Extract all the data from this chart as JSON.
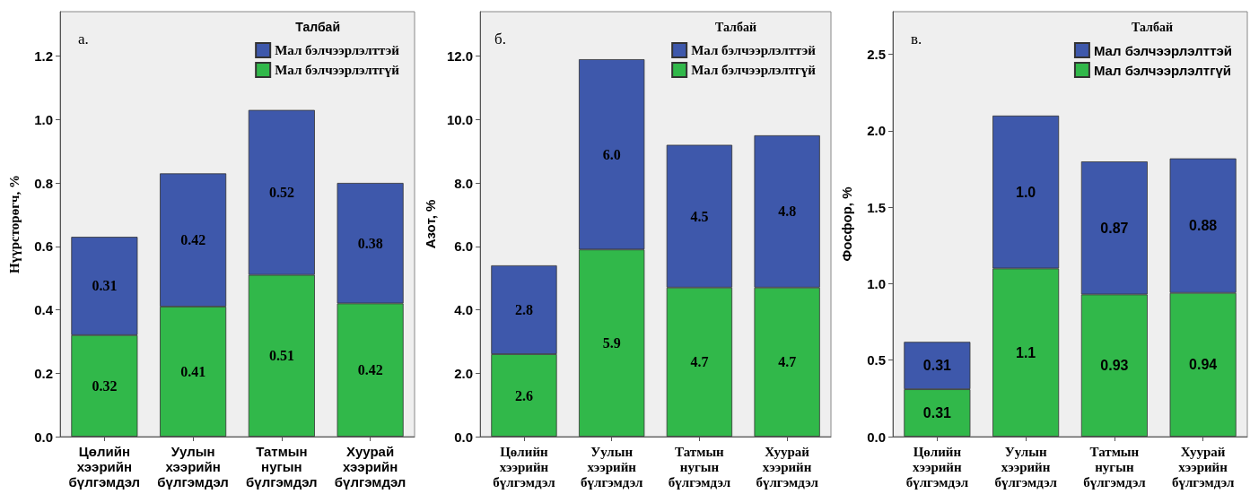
{
  "chart_data": [
    {
      "type": "bar",
      "title": "а.",
      "ylabel": "Нүүрсторөгч, %",
      "legend_title": "Талбай",
      "legend": "top right",
      "stacked": true,
      "grid": false,
      "categories": [
        "Цөлийн хээрийн бүлгэмдэл",
        "Уулын хээрийн бүлгэмдэл",
        "Татмын нугын бүлгэмдэл",
        "Хуурай хээрийн бүлгэмдэл"
      ],
      "ylim": [
        0,
        1.34
      ],
      "yticks": [
        {
          "value": 0,
          "label": "0.0"
        },
        {
          "value": 0.2,
          "label": "0.2"
        },
        {
          "value": 0.4,
          "label": "0.4"
        },
        {
          "value": 0.6,
          "label": "0.6"
        },
        {
          "value": 0.8,
          "label": "0.8"
        },
        {
          "value": 1,
          "label": "1.0"
        },
        {
          "value": 1.2,
          "label": "1.2"
        }
      ],
      "series": [
        {
          "name": "Мал бэлчээрлэлтгүй",
          "color": "#31b84a",
          "values": [
            0.32,
            0.41,
            0.51,
            0.42
          ],
          "value_labels": [
            "0.32",
            "0.41",
            "0.51",
            "0.42"
          ]
        },
        {
          "name": "Мал бэлчээрлэлттэй",
          "color": "#3e58ab",
          "values": [
            0.31,
            0.42,
            0.52,
            0.38
          ],
          "value_labels": [
            "0.31",
            "0.42",
            "0.52",
            "0.38"
          ]
        }
      ]
    },
    {
      "type": "bar",
      "title": "б.",
      "ylabel": "Азот, %",
      "legend_title": "Талбай",
      "legend": "top right",
      "stacked": true,
      "grid": false,
      "categories": [
        "Цөлийн хээрийн бүлгэмдэл",
        "Уулын хээрийн бүлгэмдэл",
        "Татмын нугын бүлгэмдэл",
        "Хуурай хээрийн бүлгэмдэл"
      ],
      "ylim": [
        0,
        13.4
      ],
      "yticks": [
        {
          "value": 0,
          "label": "0.0"
        },
        {
          "value": 2,
          "label": "2.0"
        },
        {
          "value": 4,
          "label": "4.0"
        },
        {
          "value": 6,
          "label": "6.0"
        },
        {
          "value": 8,
          "label": "8.0"
        },
        {
          "value": 10,
          "label": "10.0"
        },
        {
          "value": 12,
          "label": "12.0"
        }
      ],
      "series": [
        {
          "name": "Мал бэлчээрлэлтгүй",
          "color": "#31b84a",
          "values": [
            2.6,
            5.9,
            4.7,
            4.7
          ],
          "value_labels": [
            "2.6",
            "5.9",
            "4.7",
            "4.7"
          ]
        },
        {
          "name": "Мал бэлчээрлэлттэй",
          "color": "#3e58ab",
          "values": [
            2.8,
            6.0,
            4.5,
            4.8
          ],
          "value_labels": [
            "2.8",
            "6.0",
            "4.5",
            "4.8"
          ]
        }
      ]
    },
    {
      "type": "bar",
      "title": "в.",
      "ylabel": "Фосфор, %",
      "legend_title": "Талбай",
      "legend": "top right",
      "stacked": true,
      "grid": false,
      "categories": [
        "Цөлийн хээрийн бүлгэмдэл",
        "Уулын хээрийн бүлгэмдэл",
        "Татмын нугын бүлгэмдэл",
        "Хуурай хээрийн бүлгэмдэл"
      ],
      "ylim": [
        0,
        2.78
      ],
      "yticks": [
        {
          "value": 0,
          "label": "0.0"
        },
        {
          "value": 0.5,
          "label": "0.5"
        },
        {
          "value": 1,
          "label": "1.0"
        },
        {
          "value": 1.5,
          "label": "1.5"
        },
        {
          "value": 2,
          "label": "2.0"
        },
        {
          "value": 2.5,
          "label": "2.5"
        }
      ],
      "series": [
        {
          "name": "Мал бэлчээрлэлтгүй",
          "color": "#31b84a",
          "values": [
            0.31,
            1.1,
            0.93,
            0.94
          ],
          "value_labels": [
            "0.31",
            "1.1",
            "0.93",
            "0.94"
          ]
        },
        {
          "name": "Мал бэлчээрлэлттэй",
          "color": "#3e58ab",
          "values": [
            0.31,
            1.0,
            0.87,
            0.88
          ],
          "value_labels": [
            "0.31",
            "1.0",
            "0.87",
            "0.88"
          ]
        }
      ]
    }
  ]
}
